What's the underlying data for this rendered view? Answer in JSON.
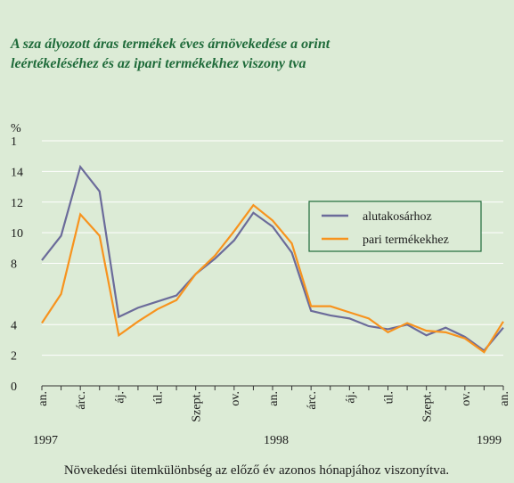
{
  "chart_data": {
    "type": "line",
    "title": "A sza  ályozott áras termékek éves árnövekedése a  orint",
    "subtitle": "leértékeléséhez és az ipari termékekhez viszony  tva",
    "y_axis_label": "%",
    "categories": [
      "an.",
      null,
      "árc.",
      null,
      "áj.",
      null,
      "úl.",
      null,
      "Szept.",
      null,
      "ov.",
      null,
      "an.",
      null,
      "árc.",
      null,
      "áj.",
      null,
      "úl.",
      null,
      "Szept.",
      null,
      "ov.",
      null,
      "an."
    ],
    "years": [
      "1997",
      "1998",
      "1999"
    ],
    "series": [
      {
        "name": "alutakosárhoz",
        "color": "#6b6b9a",
        "values": [
          8.2,
          9.8,
          14.3,
          12.7,
          4.5,
          5.1,
          5.5,
          5.9,
          7.3,
          8.3,
          9.5,
          11.3,
          10.4,
          8.7,
          4.9,
          4.6,
          4.4,
          3.9,
          3.7,
          4.0,
          3.3,
          3.8,
          3.2,
          2.3,
          3.8
        ]
      },
      {
        "name": "pari termékekhez",
        "color": "#f7931e",
        "values": [
          4.1,
          6.0,
          11.2,
          9.8,
          3.3,
          4.2,
          5.0,
          5.6,
          7.3,
          8.5,
          10.1,
          11.8,
          10.8,
          9.3,
          5.2,
          5.2,
          4.8,
          4.4,
          3.5,
          4.1,
          3.6,
          3.5,
          3.1,
          2.2,
          4.2
        ]
      }
    ],
    "ylim": [
      0,
      16
    ],
    "yticks": [
      0,
      2,
      4,
      8,
      10,
      12,
      14,
      {
        "value": 16,
        "label": "1"
      }
    ],
    "grid": true,
    "legend": "right",
    "footnote": "Növekedési ütemkülönbség az előző év azonos hónapjához viszonyítva."
  }
}
